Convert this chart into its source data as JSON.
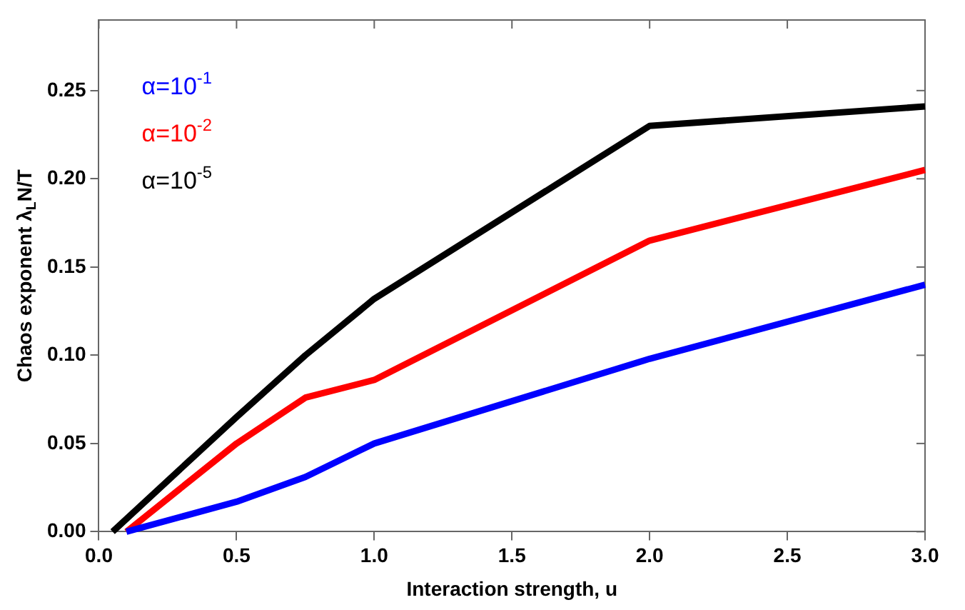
{
  "chart_data": {
    "type": "line",
    "xlabel": "Interaction strength, u",
    "ylabel": "Chaos exponent λ$_{L}$N/T",
    "xlim": [
      0,
      3
    ],
    "xticks": [
      {
        "value": 0,
        "label": "0.0"
      },
      {
        "value": 0.5,
        "label": "0.5"
      },
      {
        "value": 1,
        "label": "1.0"
      },
      {
        "value": 1.5,
        "label": "1.5"
      },
      {
        "value": 2,
        "label": "2.0"
      },
      {
        "value": 2.5,
        "label": "2.5"
      },
      {
        "value": 3,
        "label": "3.0"
      }
    ],
    "ylim": [
      0,
      0.29
    ],
    "yticks": [
      {
        "value": 0,
        "label": "0.00"
      },
      {
        "value": 0.05,
        "label": "0.05"
      },
      {
        "value": 0.1,
        "label": "0.10"
      },
      {
        "value": 0.15,
        "label": "0.15"
      },
      {
        "value": 0.2,
        "label": "0.20"
      },
      {
        "value": 0.25,
        "label": "0.25"
      }
    ],
    "grid": false,
    "legend": "top left",
    "marker": "none",
    "line_style": "solid",
    "series": [
      {
        "name": "α=10$^{-1}$",
        "color": "#0000ff",
        "x": [
          0.1,
          0.5,
          0.75,
          1,
          2,
          3
        ],
        "values": [
          0,
          0.017,
          0.031,
          0.05,
          0.098,
          0.14
        ]
      },
      {
        "name": "α=10$^{-2}$",
        "color": "#ff0000",
        "x": [
          0.1,
          0.5,
          0.75,
          1,
          2,
          3
        ],
        "values": [
          0,
          0.05,
          0.076,
          0.086,
          0.165,
          0.205
        ]
      },
      {
        "name": "α=10$^{-5}$",
        "color": "#000000",
        "x": [
          0.05,
          0.5,
          0.75,
          1,
          2,
          3
        ],
        "values": [
          0,
          0.065,
          0.1,
          0.132,
          0.23,
          0.241
        ]
      }
    ]
  }
}
